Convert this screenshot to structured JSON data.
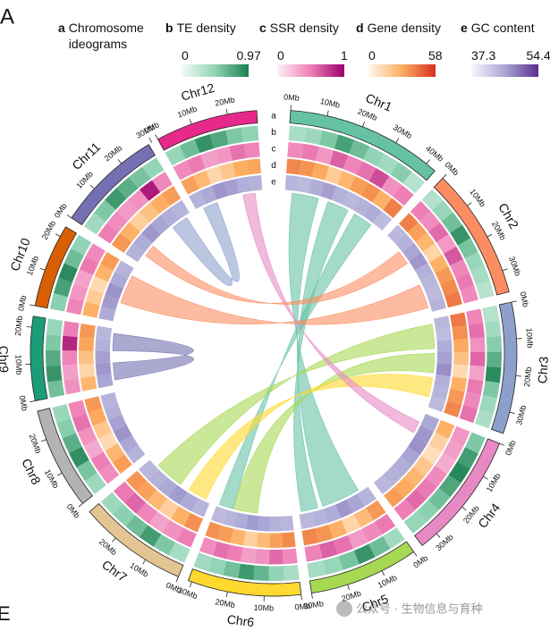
{
  "panel_label": "A",
  "next_panel_label": "E",
  "watermark": "公众号 · 生物信息与育种",
  "chart_data": {
    "type": "circos",
    "ideogram_legend": {
      "key": "a",
      "name": "Chromosome ideograms"
    },
    "chromosomes": [
      {
        "name": "Chr1",
        "color": "#66c2a5",
        "length": 43,
        "ticks": [
          {
            "value": 0,
            "label": "0Mb"
          },
          {
            "value": 10,
            "label": "10Mb"
          },
          {
            "value": 20,
            "label": "20Mb"
          },
          {
            "value": 30,
            "label": "30Mb"
          },
          {
            "value": 40,
            "label": "40Mb"
          }
        ]
      },
      {
        "name": "Chr2",
        "color": "#fc8d62",
        "length": 36,
        "ticks": [
          {
            "value": 0,
            "label": "0Mb"
          },
          {
            "value": 10,
            "label": "10Mb"
          },
          {
            "value": 20,
            "label": "20Mb"
          },
          {
            "value": 30,
            "label": "30Mb"
          }
        ]
      },
      {
        "name": "Chr3",
        "color": "#8da0cb",
        "length": 36,
        "ticks": [
          {
            "value": 0,
            "label": "0Mb"
          },
          {
            "value": 10,
            "label": "10Mb"
          },
          {
            "value": 20,
            "label": "20Mb"
          },
          {
            "value": 30,
            "label": "30Mb"
          }
        ]
      },
      {
        "name": "Chr4",
        "color": "#e78ac3",
        "length": 35,
        "ticks": [
          {
            "value": 0,
            "label": "0Mb"
          },
          {
            "value": 10,
            "label": "10Mb"
          },
          {
            "value": 20,
            "label": "20Mb"
          },
          {
            "value": 30,
            "label": "30Mb"
          }
        ]
      },
      {
        "name": "Chr5",
        "color": "#a6d854",
        "length": 30,
        "ticks": [
          {
            "value": 0,
            "label": "0Mb"
          },
          {
            "value": 10,
            "label": "10Mb"
          },
          {
            "value": 20,
            "label": "20Mb"
          },
          {
            "value": 30,
            "label": "30Mb"
          }
        ]
      },
      {
        "name": "Chr6",
        "color": "#ffd92f",
        "length": 31,
        "ticks": [
          {
            "value": 0,
            "label": "0Mb"
          },
          {
            "value": 10,
            "label": "10Mb"
          },
          {
            "value": 20,
            "label": "20Mb"
          },
          {
            "value": 30,
            "label": "30Mb"
          }
        ]
      },
      {
        "name": "Chr7",
        "color": "#e5c494",
        "length": 30,
        "ticks": [
          {
            "value": 0,
            "label": "0Mb"
          },
          {
            "value": 10,
            "label": "10Mb"
          },
          {
            "value": 20,
            "label": "20Mb"
          }
        ]
      },
      {
        "name": "Chr8",
        "color": "#b3b3b3",
        "length": 28,
        "ticks": [
          {
            "value": 0,
            "label": "0Mb"
          },
          {
            "value": 10,
            "label": "10Mb"
          },
          {
            "value": 20,
            "label": "20Mb"
          }
        ]
      },
      {
        "name": "Chr9",
        "color": "#1b9e77",
        "length": 23,
        "ticks": [
          {
            "value": 0,
            "label": "0Mb"
          },
          {
            "value": 10,
            "label": "10Mb"
          },
          {
            "value": 20,
            "label": "20Mb"
          }
        ]
      },
      {
        "name": "Chr10",
        "color": "#d95f02",
        "length": 23,
        "ticks": [
          {
            "value": 0,
            "label": "0Mb"
          },
          {
            "value": 10,
            "label": "10Mb"
          },
          {
            "value": 20,
            "label": "20Mb"
          }
        ]
      },
      {
        "name": "Chr11",
        "color": "#7570b3",
        "length": 29,
        "ticks": [
          {
            "value": 0,
            "label": "0Mb"
          },
          {
            "value": 10,
            "label": "10Mb"
          },
          {
            "value": 20,
            "label": "20Mb"
          },
          {
            "value": 30,
            "label": "30Mb"
          }
        ]
      },
      {
        "name": "Chr12",
        "color": "#e7298a",
        "length": 28,
        "ticks": [
          {
            "value": 0,
            "label": "0Mb"
          },
          {
            "value": 10,
            "label": "10Mb"
          },
          {
            "value": 20,
            "label": "20Mb"
          }
        ]
      }
    ],
    "tracks": [
      {
        "key": "b",
        "name": "TE density",
        "min": 0,
        "max": 0.97,
        "colors": [
          "#f4fbf8",
          "#8fd3b4",
          "#1b7f4f"
        ],
        "values": [
          [
            0.35,
            0.42,
            0.55,
            0.78,
            0.62,
            0.48,
            0.4,
            0.52,
            0.3
          ],
          [
            0.32,
            0.45,
            0.6,
            0.85,
            0.58,
            0.44,
            0.38,
            0.3
          ],
          [
            0.3,
            0.4,
            0.52,
            0.7,
            0.9,
            0.55,
            0.42,
            0.35
          ],
          [
            0.55,
            0.8,
            0.92,
            0.75,
            0.6,
            0.5,
            0.45
          ],
          [
            0.4,
            0.62,
            0.85,
            0.58,
            0.45,
            0.38
          ],
          [
            0.36,
            0.48,
            0.66,
            0.82,
            0.6,
            0.47,
            0.4
          ],
          [
            0.38,
            0.55,
            0.8,
            0.62,
            0.5,
            0.42
          ],
          [
            0.42,
            0.58,
            0.88,
            0.7,
            0.52,
            0.44
          ],
          [
            0.6,
            0.85,
            0.72,
            0.55,
            0.45
          ],
          [
            0.5,
            0.78,
            0.9,
            0.62,
            0.48
          ],
          [
            0.4,
            0.55,
            0.82,
            0.7,
            0.58,
            0.46
          ],
          [
            0.45,
            0.62,
            0.86,
            0.74,
            0.55,
            0.48
          ]
        ]
      },
      {
        "key": "c",
        "name": "SSR density",
        "min": 0,
        "max": 1,
        "colors": [
          "#fdf0f6",
          "#ee7fb6",
          "#9c006a"
        ],
        "values": [
          [
            0.45,
            0.52,
            0.4,
            0.62,
            0.48,
            0.55,
            0.7,
            0.42,
            0.5
          ],
          [
            0.5,
            0.44,
            0.58,
            0.38,
            0.65,
            0.47,
            0.52,
            0.45
          ],
          [
            0.48,
            0.56,
            0.42,
            0.6,
            0.35,
            0.52,
            0.46,
            0.55
          ],
          [
            0.4,
            0.36,
            0.3,
            0.45,
            0.52,
            0.58,
            0.5
          ],
          [
            0.52,
            0.45,
            0.38,
            0.55,
            0.62,
            0.48
          ],
          [
            0.46,
            0.58,
            0.42,
            0.36,
            0.5,
            0.56,
            0.44
          ],
          [
            0.5,
            0.42,
            0.35,
            0.48,
            0.6,
            0.52
          ],
          [
            0.44,
            0.5,
            0.32,
            0.42,
            0.55,
            0.48
          ],
          [
            0.42,
            0.36,
            0.48,
            0.85,
            0.5
          ],
          [
            0.48,
            0.4,
            0.34,
            0.52,
            0.45
          ],
          [
            0.5,
            0.44,
            0.38,
            0.42,
            0.9,
            0.46
          ],
          [
            0.45,
            0.52,
            0.36,
            0.4,
            0.55,
            0.48
          ]
        ]
      },
      {
        "key": "d",
        "name": "Gene density",
        "min": 0,
        "max": 58,
        "colors": [
          "#fff7ec",
          "#fdae61",
          "#d7301f"
        ],
        "values": [
          [
            38,
            35,
            30,
            18,
            26,
            33,
            36,
            28,
            40
          ],
          [
            40,
            32,
            26,
            14,
            28,
            34,
            37,
            41
          ],
          [
            41,
            36,
            30,
            22,
            12,
            28,
            34,
            38
          ],
          [
            28,
            16,
            10,
            20,
            26,
            30,
            33
          ],
          [
            34,
            24,
            14,
            28,
            35,
            38
          ],
          [
            37,
            32,
            24,
            16,
            27,
            33,
            36
          ],
          [
            36,
            28,
            16,
            25,
            32,
            35
          ],
          [
            33,
            26,
            12,
            20,
            30,
            34
          ],
          [
            26,
            14,
            22,
            31,
            34
          ],
          [
            28,
            18,
            12,
            27,
            33
          ],
          [
            34,
            28,
            16,
            22,
            29,
            33
          ],
          [
            32,
            25,
            13,
            20,
            29,
            31
          ]
        ]
      },
      {
        "key": "e",
        "name": "GC content",
        "min": 37.3,
        "max": 54.4,
        "colors": [
          "#f7f5fb",
          "#a9a6d4",
          "#5b2c8f"
        ],
        "values": [
          [
            44.2,
            43.8,
            45.1,
            46.3,
            44.7,
            43.9,
            44.5,
            45.2,
            43.6
          ],
          [
            43.9,
            44.6,
            45.8,
            47.0,
            44.9,
            44.1,
            43.7,
            44.4
          ],
          [
            44.0,
            43.5,
            45.2,
            46.1,
            47.5,
            45.0,
            44.2,
            43.8
          ],
          [
            45.6,
            46.8,
            47.4,
            46.0,
            45.1,
            44.5,
            44.0
          ],
          [
            44.3,
            45.7,
            46.9,
            45.2,
            44.4,
            43.9
          ],
          [
            44.1,
            44.8,
            45.9,
            46.7,
            45.3,
            44.2,
            43.8
          ],
          [
            44.2,
            45.4,
            46.6,
            45.5,
            44.6,
            44.0
          ],
          [
            44.5,
            45.6,
            47.2,
            46.1,
            44.9,
            44.3
          ],
          [
            45.9,
            47.0,
            46.2,
            44.8,
            44.1
          ],
          [
            45.3,
            46.6,
            47.3,
            45.5,
            44.4
          ],
          [
            44.4,
            45.2,
            46.8,
            46.0,
            45.1,
            44.3
          ],
          [
            44.6,
            45.5,
            47.0,
            46.3,
            45.0,
            44.5
          ]
        ]
      }
    ],
    "links": [
      {
        "from": "Chr1",
        "from_start": 3,
        "from_end": 14,
        "to": "Chr5",
        "to_start": 4,
        "to_end": 20,
        "color": "#66c2a5"
      },
      {
        "from": "Chr1",
        "from_start": 18,
        "from_end": 27,
        "to": "Chr5",
        "to_start": 22,
        "to_end": 29,
        "color": "#66c2a5"
      },
      {
        "from": "Chr1",
        "from_start": 30,
        "from_end": 38,
        "to": "Chr6",
        "to_start": 24,
        "to_end": 30,
        "color": "#66c2a5"
      },
      {
        "from": "Chr2",
        "from_start": 24,
        "from_end": 34,
        "to": "Chr10",
        "to_start": 8,
        "to_end": 20,
        "color": "#fc8d62"
      },
      {
        "from": "Chr3",
        "from_start": 2,
        "from_end": 12,
        "to": "Chr7",
        "to_start": 14,
        "to_end": 26,
        "color": "#a6d854"
      },
      {
        "from": "Chr3",
        "from_start": 14,
        "from_end": 22,
        "to": "Chr6",
        "to_start": 14,
        "to_end": 24,
        "color": "#a6d854"
      },
      {
        "from": "Chr3",
        "from_start": 24,
        "from_end": 32,
        "to": "Chr7",
        "to_start": 2,
        "to_end": 10,
        "color": "#ffd92f"
      },
      {
        "from": "Chr9",
        "from_start": 2,
        "from_end": 9,
        "to": "Chr9",
        "to_start": 14,
        "to_end": 21,
        "color": "#7570b3"
      },
      {
        "from": "Chr11",
        "from_start": 20,
        "from_end": 27,
        "to": "Chr12",
        "to_start": 3,
        "to_end": 9,
        "color": "#8da0cb"
      },
      {
        "from": "Chr12",
        "from_start": 20,
        "from_end": 25,
        "to": "Chr4",
        "to_start": 4,
        "to_end": 9,
        "color": "#e78ac3"
      },
      {
        "from": "Chr2",
        "from_start": 8,
        "from_end": 14,
        "to": "Chr11",
        "to_start": 4,
        "to_end": 9,
        "color": "#fc8d62"
      }
    ]
  }
}
